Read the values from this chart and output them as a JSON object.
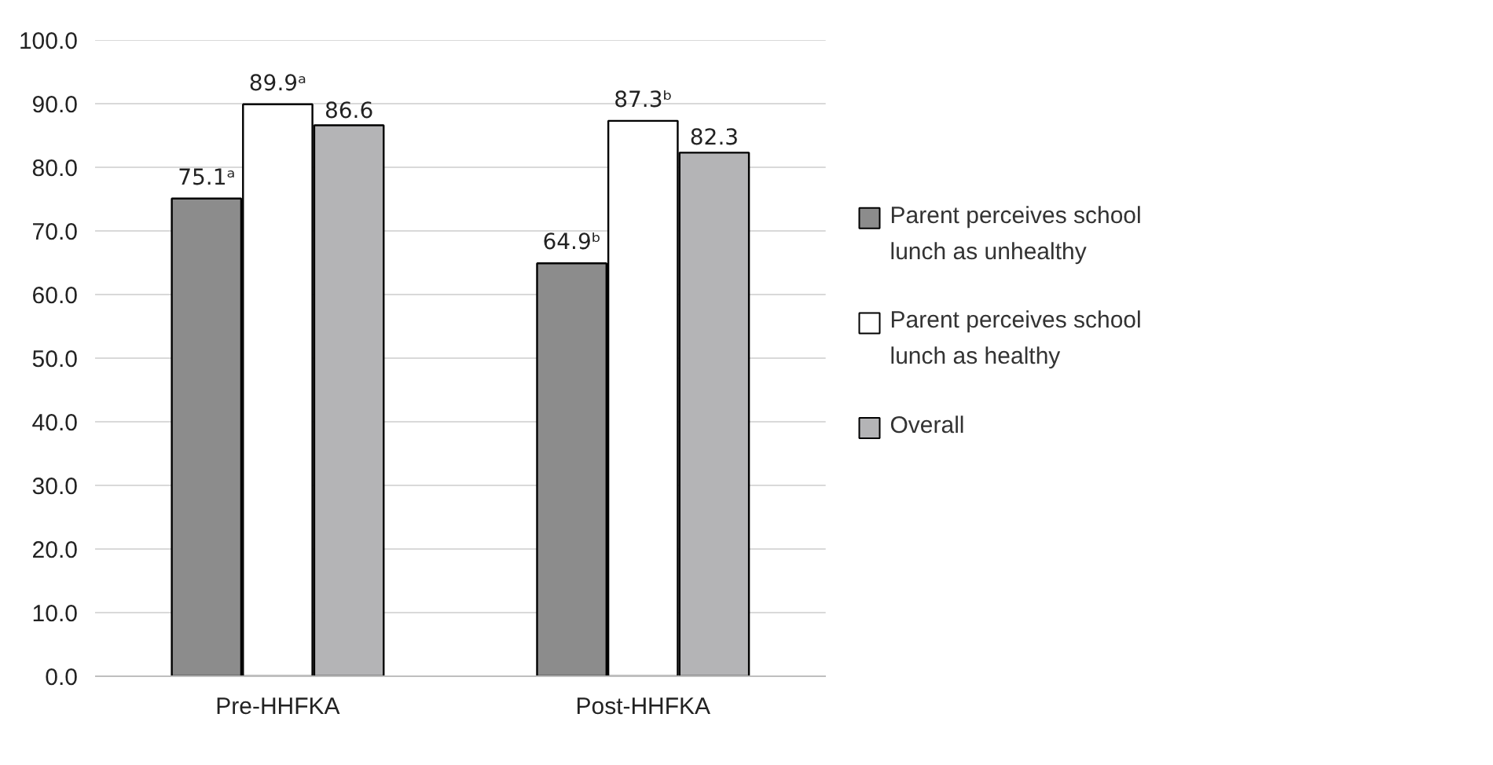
{
  "chart_data": {
    "type": "bar",
    "categories": [
      "Pre-HHFKA",
      "Post-HHFKA"
    ],
    "series": [
      {
        "name": "Parent perceives school lunch as unhealthy",
        "color": "#8c8c8c",
        "values": [
          75.1,
          64.9
        ],
        "value_labels": [
          "75.1ᵃ",
          "64.9ᵇ"
        ]
      },
      {
        "name": "Parent perceives school lunch as healthy",
        "color": "#ffffff",
        "values": [
          89.9,
          87.3
        ],
        "value_labels": [
          "89.9ᵃ",
          "87.3ᵇ"
        ]
      },
      {
        "name": "Overall",
        "color": "#b4b4b6",
        "values": [
          86.6,
          82.3
        ],
        "value_labels": [
          "86.6",
          "82.3"
        ]
      }
    ],
    "ylim": [
      0,
      100
    ],
    "yticks": [
      {
        "value": 0,
        "label": "0.0"
      },
      {
        "value": 10,
        "label": "10.0"
      },
      {
        "value": 20,
        "label": "20.0"
      },
      {
        "value": 30,
        "label": "30.0"
      },
      {
        "value": 40,
        "label": "40.0"
      },
      {
        "value": 50,
        "label": "50.0"
      },
      {
        "value": 60,
        "label": "60.0"
      },
      {
        "value": 70,
        "label": "70.0"
      },
      {
        "value": 80,
        "label": "80.0"
      },
      {
        "value": 90,
        "label": "90.0"
      },
      {
        "value": 100,
        "label": "100.0"
      }
    ],
    "grid": "y",
    "legend": "right"
  }
}
